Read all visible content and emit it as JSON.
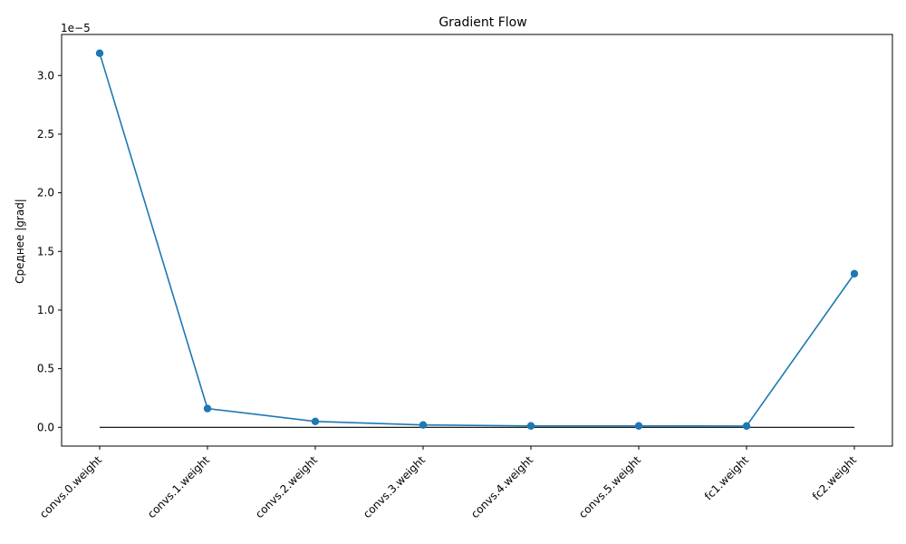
{
  "chart_data": {
    "type": "line",
    "title": "Gradient Flow",
    "xlabel": "",
    "ylabel": "Среднее |grad|",
    "y_offset_label": "1e−5",
    "categories": [
      "convs.0.weight",
      "convs.1.weight",
      "convs.2.weight",
      "convs.3.weight",
      "convs.4.weight",
      "convs.5.weight",
      "fc1.weight",
      "fc2.weight"
    ],
    "values": [
      3.19e-05,
      1.6e-06,
      5e-07,
      2e-07,
      1.2e-07,
      1.2e-07,
      1.1e-07,
      1.31e-05
    ],
    "y_ticks": [
      0,
      5e-06,
      1e-05,
      1.5e-05,
      2e-05,
      2.5e-05,
      3e-05
    ],
    "y_tick_labels": [
      "0.0",
      "0.5",
      "1.0",
      "1.5",
      "2.0",
      "2.5",
      "3.0"
    ],
    "ylim": [
      -1.6e-06,
      3.35e-05
    ],
    "reference_line_y": 0,
    "series_color": "#1f77b4",
    "reference_line_color": "#000000",
    "grid": false,
    "legend": "none"
  }
}
